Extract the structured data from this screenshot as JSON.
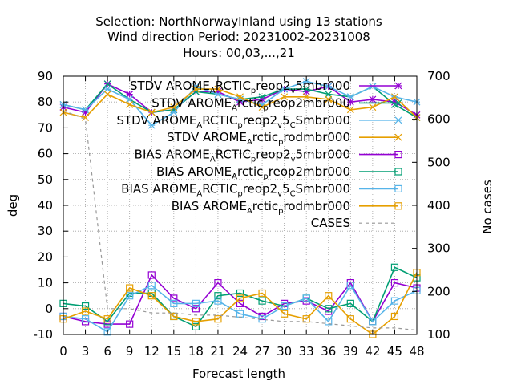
{
  "chart_data": {
    "type": "line",
    "title_lines": [
      "Selection: NorthNorwayInland using    13 stations",
      "Wind direction   Period: 20231002-20231008",
      "Hours:  00,03,...,21"
    ],
    "xlabel": "Forecast length",
    "ylabel": "deg",
    "y2label": "No cases",
    "x": [
      0,
      3,
      6,
      9,
      12,
      15,
      18,
      21,
      24,
      27,
      30,
      33,
      36,
      39,
      42,
      45,
      48
    ],
    "xlim": [
      0,
      48
    ],
    "ylim": [
      -10,
      90
    ],
    "y2lim": [
      100,
      700
    ],
    "xticks": [
      "0",
      "3",
      "6",
      "9",
      "12",
      "15",
      "18",
      "21",
      "24",
      "27",
      "30",
      "33",
      "36",
      "39",
      "42",
      "45",
      "48"
    ],
    "yticks": [
      "-10",
      "0",
      "10",
      "20",
      "30",
      "40",
      "50",
      "60",
      "70",
      "80",
      "90"
    ],
    "y2ticks": [
      "100",
      "200",
      "300",
      "400",
      "500",
      "600",
      "700"
    ],
    "grid": true,
    "legend_position": "top-right",
    "series": [
      {
        "name": "STDV AROME_ARCTIC_preop2_v5mbr000",
        "legend_parts": [
          "STDV AROME",
          "A",
          "RCTIC",
          "p",
          "reop2",
          "v",
          "5mbr000"
        ],
        "color": "#9400d3",
        "marker": "star",
        "axis": "left",
        "values": [
          78,
          76,
          87,
          83,
          76,
          77,
          84,
          84,
          80,
          81,
          85,
          84,
          86,
          80,
          81,
          80,
          75
        ]
      },
      {
        "name": "STDV AROME_Arctic_preop2mbr000",
        "legend_parts": [
          "STDV AROME",
          "A",
          "rctic",
          "p",
          "reop2mbr000"
        ],
        "color": "#009e73",
        "marker": "x",
        "axis": "left",
        "values": [
          79,
          77,
          87,
          81,
          76,
          77,
          84,
          83,
          81,
          82,
          85,
          85,
          83,
          82,
          86,
          79,
          74
        ]
      },
      {
        "name": "STDV AROME_ARCTIC_preop2_v5_CSmbr000",
        "legend_parts": [
          "STDV AROME",
          "A",
          "RCTIC",
          "p",
          "reop2",
          "v",
          "5",
          "C",
          "Smbr000"
        ],
        "color": "#56b4e9",
        "marker": "asterisk",
        "axis": "left",
        "values": [
          79,
          77,
          85,
          81,
          71,
          76,
          86,
          83,
          81,
          79,
          85,
          88,
          86,
          82,
          86,
          82,
          80
        ]
      },
      {
        "name": "STDV AROME_Arctic_prodmbr000",
        "legend_parts": [
          "STDV AROME",
          "A",
          "rctic",
          "p",
          "rodmbr000"
        ],
        "color": "#e69f00",
        "marker": "x",
        "axis": "left",
        "values": [
          76,
          74,
          83,
          79,
          76,
          78,
          85,
          85,
          82,
          78,
          82,
          82,
          81,
          77,
          78,
          82,
          74
        ]
      },
      {
        "name": "BIAS AROME_ARCTIC_preop2_v5mbr000",
        "legend_parts": [
          "BIAS AROME",
          "A",
          "RCTIC",
          "p",
          "reop2",
          "v",
          "5mbr000"
        ],
        "color": "#9400d3",
        "marker": "square",
        "axis": "left",
        "values": [
          -3,
          -5,
          -6,
          -6,
          13,
          4,
          0,
          10,
          2,
          -3,
          2,
          3,
          -1,
          10,
          -5,
          10,
          8
        ]
      },
      {
        "name": "BIAS AROME_Arctic_preop2mbr000",
        "legend_parts": [
          "BIAS AROME",
          "A",
          "rctic",
          "p",
          "reop2mbr000"
        ],
        "color": "#009e73",
        "marker": "square",
        "axis": "left",
        "values": [
          2,
          1,
          -5,
          6,
          6,
          -3,
          -7,
          5,
          6,
          3,
          1,
          4,
          0,
          2,
          -5,
          16,
          12
        ]
      },
      {
        "name": "BIAS AROME_ARCTIC_preop2_v5_CSmbr000",
        "legend_parts": [
          "BIAS AROME",
          "A",
          "RCTIC",
          "p",
          "reop2",
          "v",
          "5",
          "C",
          "Smbr000"
        ],
        "color": "#56b4e9",
        "marker": "square",
        "axis": "left",
        "values": [
          -3,
          -4,
          -9,
          5,
          9,
          2,
          2,
          3,
          -2,
          -4,
          1,
          4,
          -5,
          9,
          -5,
          3,
          7
        ]
      },
      {
        "name": "BIAS AROME_Arctic_prodmbr000",
        "legend_parts": [
          "BIAS AROME",
          "A",
          "rctic",
          "p",
          "rodmbr000"
        ],
        "color": "#e69f00",
        "marker": "square",
        "axis": "left",
        "values": [
          -4,
          -1,
          -4,
          8,
          5,
          -3,
          -5,
          -4,
          4,
          6,
          -2,
          -4,
          5,
          -4,
          -10,
          -3,
          14
        ]
      },
      {
        "name": "CASES",
        "legend_parts": [
          "CASES"
        ],
        "color": "#999999",
        "marker": "none",
        "dash": true,
        "axis": "right",
        "values": [
          620,
          600,
          160,
          160,
          150,
          150,
          145,
          145,
          140,
          135,
          130,
          130,
          125,
          120,
          115,
          115,
          110
        ]
      }
    ]
  }
}
